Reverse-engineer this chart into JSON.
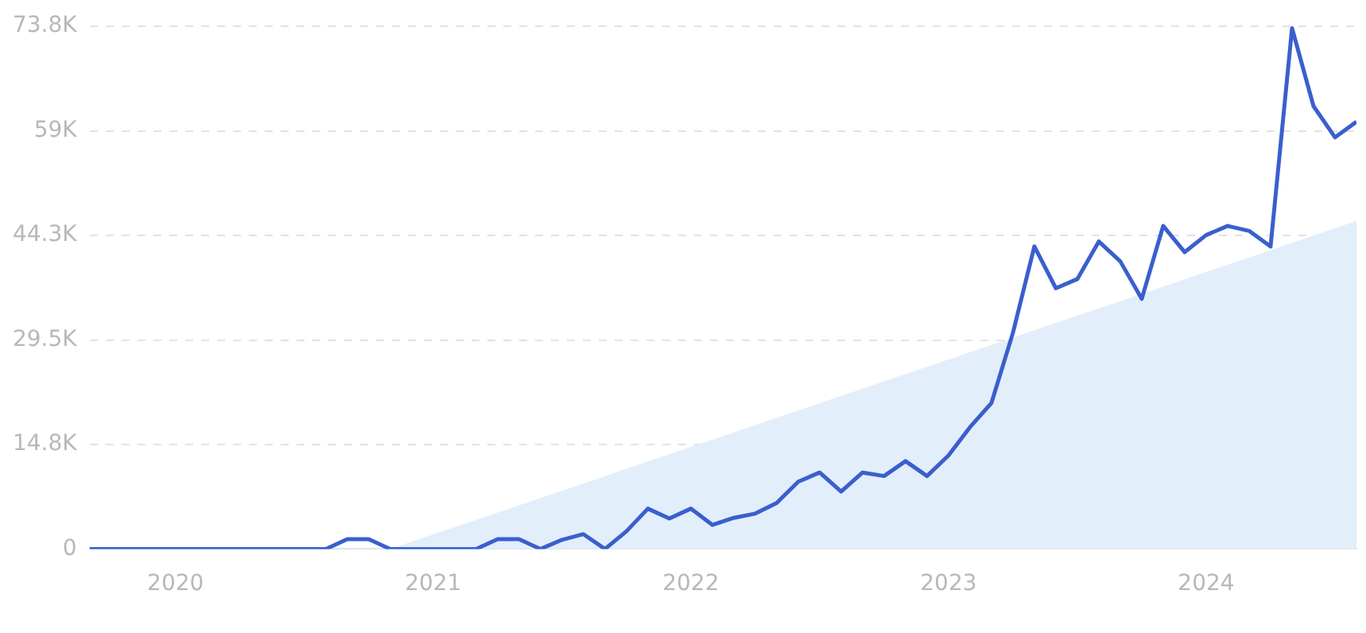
{
  "chart_data": {
    "type": "line",
    "x": [
      "2019-09",
      "2019-10",
      "2019-11",
      "2019-12",
      "2020-01",
      "2020-02",
      "2020-03",
      "2020-04",
      "2020-05",
      "2020-06",
      "2020-07",
      "2020-08",
      "2020-09",
      "2020-10",
      "2020-11",
      "2020-12",
      "2021-01",
      "2021-02",
      "2021-03",
      "2021-04",
      "2021-05",
      "2021-06",
      "2021-07",
      "2021-08",
      "2021-09",
      "2021-10",
      "2021-11",
      "2021-12",
      "2022-01",
      "2022-02",
      "2022-03",
      "2022-04",
      "2022-05",
      "2022-06",
      "2022-07",
      "2022-08",
      "2022-09",
      "2022-10",
      "2022-11",
      "2022-12",
      "2023-01",
      "2023-02",
      "2023-03",
      "2023-04",
      "2023-05",
      "2023-06",
      "2023-07",
      "2023-08",
      "2023-09",
      "2023-10",
      "2023-11",
      "2023-12",
      "2024-01",
      "2024-02",
      "2024-03",
      "2024-04",
      "2024-05",
      "2024-06",
      "2024-07",
      "2024-08"
    ],
    "series": [
      {
        "type": "area",
        "color": "#e3eefb",
        "x": [
          "2020-11",
          "2024-08"
        ],
        "values": [
          0,
          46300
        ]
      },
      {
        "type": "line",
        "color": "#3a5fcd",
        "values": [
          0,
          0,
          0,
          0,
          0,
          0,
          0,
          0,
          0,
          0,
          0,
          0,
          1400,
          1400,
          0,
          0,
          0,
          0,
          0,
          1400,
          1400,
          0,
          1300,
          2100,
          0,
          2500,
          5700,
          4300,
          5700,
          3400,
          4400,
          5000,
          6500,
          9500,
          10800,
          8100,
          10800,
          10300,
          12400,
          10300,
          13200,
          17200,
          20600,
          30500,
          42700,
          36800,
          38100,
          43400,
          40600,
          35300,
          45600,
          41900,
          44300,
          45600,
          44900,
          42700,
          73500,
          62500,
          58100,
          60300
        ]
      }
    ],
    "xlim": [
      "2019-09",
      "2024-08"
    ],
    "xticks": [
      {
        "value": "2020-01",
        "label": "2020"
      },
      {
        "value": "2021-01",
        "label": "2021"
      },
      {
        "value": "2022-01",
        "label": "2022"
      },
      {
        "value": "2023-01",
        "label": "2023"
      },
      {
        "value": "2024-01",
        "label": "2024"
      }
    ],
    "ylim": [
      0,
      73800
    ],
    "yticks": [
      0,
      {
        "value": 14800,
        "label": "14.8K"
      },
      {
        "value": 29500,
        "label": "29.5K"
      },
      {
        "value": 44300,
        "label": "44.3K"
      },
      {
        "value": 59000,
        "label": "59K"
      },
      {
        "value": 73800,
        "label": "73.8K"
      }
    ],
    "grid": "y",
    "legend": false,
    "marker": "none",
    "line_style": "solid"
  }
}
